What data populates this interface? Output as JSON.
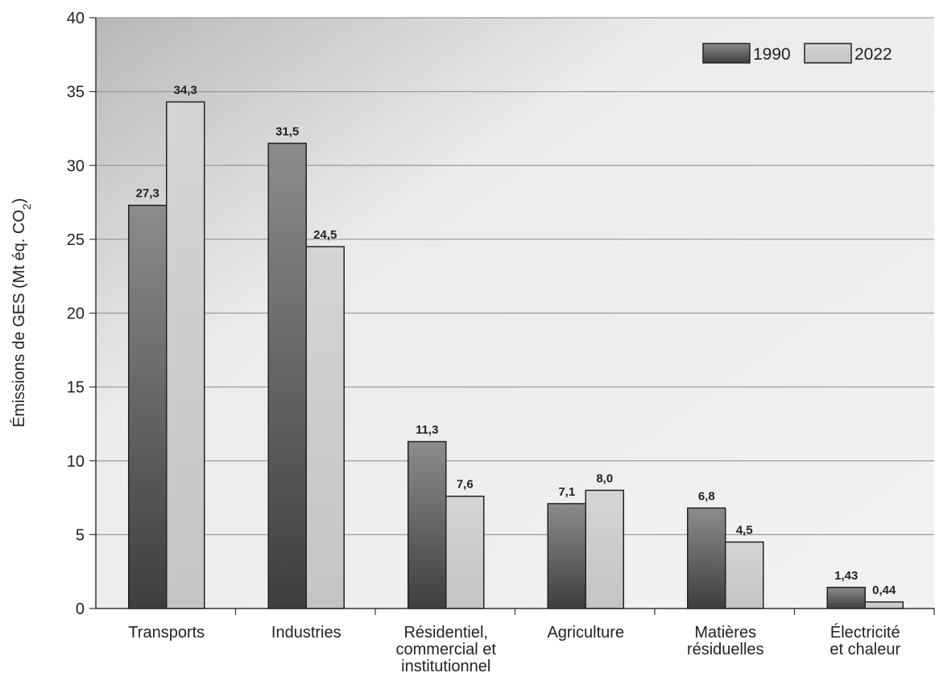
{
  "chart_data": {
    "type": "bar",
    "categories": [
      [
        "Transports"
      ],
      [
        "Industries"
      ],
      [
        "Résidentiel,",
        "commercial et",
        "institutionnel"
      ],
      [
        "Agriculture"
      ],
      [
        "Matières",
        "résiduelles"
      ],
      [
        "Électricité",
        "et chaleur"
      ]
    ],
    "series": [
      {
        "name": "1990",
        "values": [
          27.3,
          31.5,
          11.3,
          7.1,
          6.8,
          1.43
        ],
        "labels": [
          "27,3",
          "31,5",
          "11,3",
          "7,1",
          "6,8",
          "1,43"
        ],
        "color": "#555555"
      },
      {
        "name": "2022",
        "values": [
          34.3,
          24.5,
          7.6,
          8.0,
          4.5,
          0.44
        ],
        "labels": [
          "34,3",
          "24,5",
          "7,6",
          "8,0",
          "4,5",
          "0,44"
        ],
        "color": "#cfcfcf"
      }
    ],
    "ylabel": "Émissions de GES (Mt éq. CO",
    "ylabel_sub": "2",
    "ylabel_end": ")",
    "xlabel": "",
    "ylim": [
      0,
      40
    ],
    "yticks": [
      0,
      5,
      10,
      15,
      20,
      25,
      30,
      35,
      40
    ],
    "grid": true,
    "legend": "top-right"
  }
}
